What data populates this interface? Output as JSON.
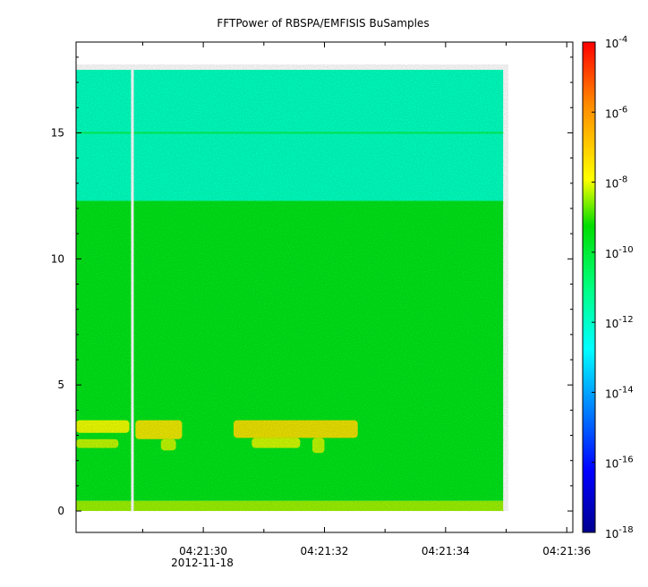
{
  "chart_data": {
    "type": "heatmap",
    "title": "FFTPower of RBSPA/EMFISIS  BuSamples",
    "xlabel": "",
    "ylabel": "",
    "x_ticks": [
      {
        "value": 30,
        "label": "04:21:30"
      },
      {
        "value": 32,
        "label": "04:21:32"
      },
      {
        "value": 34,
        "label": "04:21:34"
      },
      {
        "value": 36,
        "label": "04:21:36"
      }
    ],
    "x_minor_ticks": [
      29,
      31,
      33,
      35
    ],
    "x_date_label": "2012-11-18",
    "xlim": [
      27.9,
      36.1
    ],
    "data_x_range": [
      27.9,
      34.95
    ],
    "gap_x": 28.83,
    "y_ticks": [
      0,
      5,
      10,
      15
    ],
    "ylim": [
      -0.85,
      18.6
    ],
    "data_y_range": [
      0,
      17.5
    ],
    "colorbar": {
      "scale": "log",
      "range": [
        1e-18,
        0.0001
      ],
      "ticks": [
        {
          "value": 0.0001,
          "base": "10",
          "exp": "-4"
        },
        {
          "value": 1e-06,
          "base": "10",
          "exp": "-6"
        },
        {
          "value": 1e-08,
          "base": "10",
          "exp": "-8"
        },
        {
          "value": 1e-10,
          "base": "10",
          "exp": "-10"
        },
        {
          "value": 1e-12,
          "base": "10",
          "exp": "-12"
        },
        {
          "value": 1e-14,
          "base": "10",
          "exp": "-14"
        },
        {
          "value": 1e-16,
          "base": "10",
          "exp": "-16"
        },
        {
          "value": 1e-18,
          "base": "10",
          "exp": "-18"
        }
      ]
    },
    "bands": [
      {
        "y": [
          12.3,
          17.5
        ],
        "log_power": -11.5
      },
      {
        "y": [
          0.4,
          12.3
        ],
        "log_power": -9.8
      },
      {
        "y": [
          0,
          0.4
        ],
        "log_power": -8.6
      }
    ],
    "enhancements": [
      {
        "x": [
          27.9,
          28.78
        ],
        "y": [
          3.1,
          3.6
        ],
        "log_power": -8.0
      },
      {
        "x": [
          27.9,
          28.6
        ],
        "y": [
          2.5,
          2.85
        ],
        "log_power": -8.3
      },
      {
        "x": [
          28.88,
          29.65
        ],
        "y": [
          2.85,
          3.6
        ],
        "log_power": -7.6
      },
      {
        "x": [
          29.3,
          29.55
        ],
        "y": [
          2.4,
          2.85
        ],
        "log_power": -8.3
      },
      {
        "x": [
          30.5,
          32.55
        ],
        "y": [
          2.9,
          3.6
        ],
        "log_power": -7.5
      },
      {
        "x": [
          30.8,
          31.6
        ],
        "y": [
          2.5,
          2.9
        ],
        "log_power": -8.2
      },
      {
        "x": [
          31.8,
          32.0
        ],
        "y": [
          2.3,
          2.9
        ],
        "log_power": -8.3
      }
    ],
    "lines": [
      {
        "y": 15.0,
        "log_power": -10.5
      }
    ]
  }
}
